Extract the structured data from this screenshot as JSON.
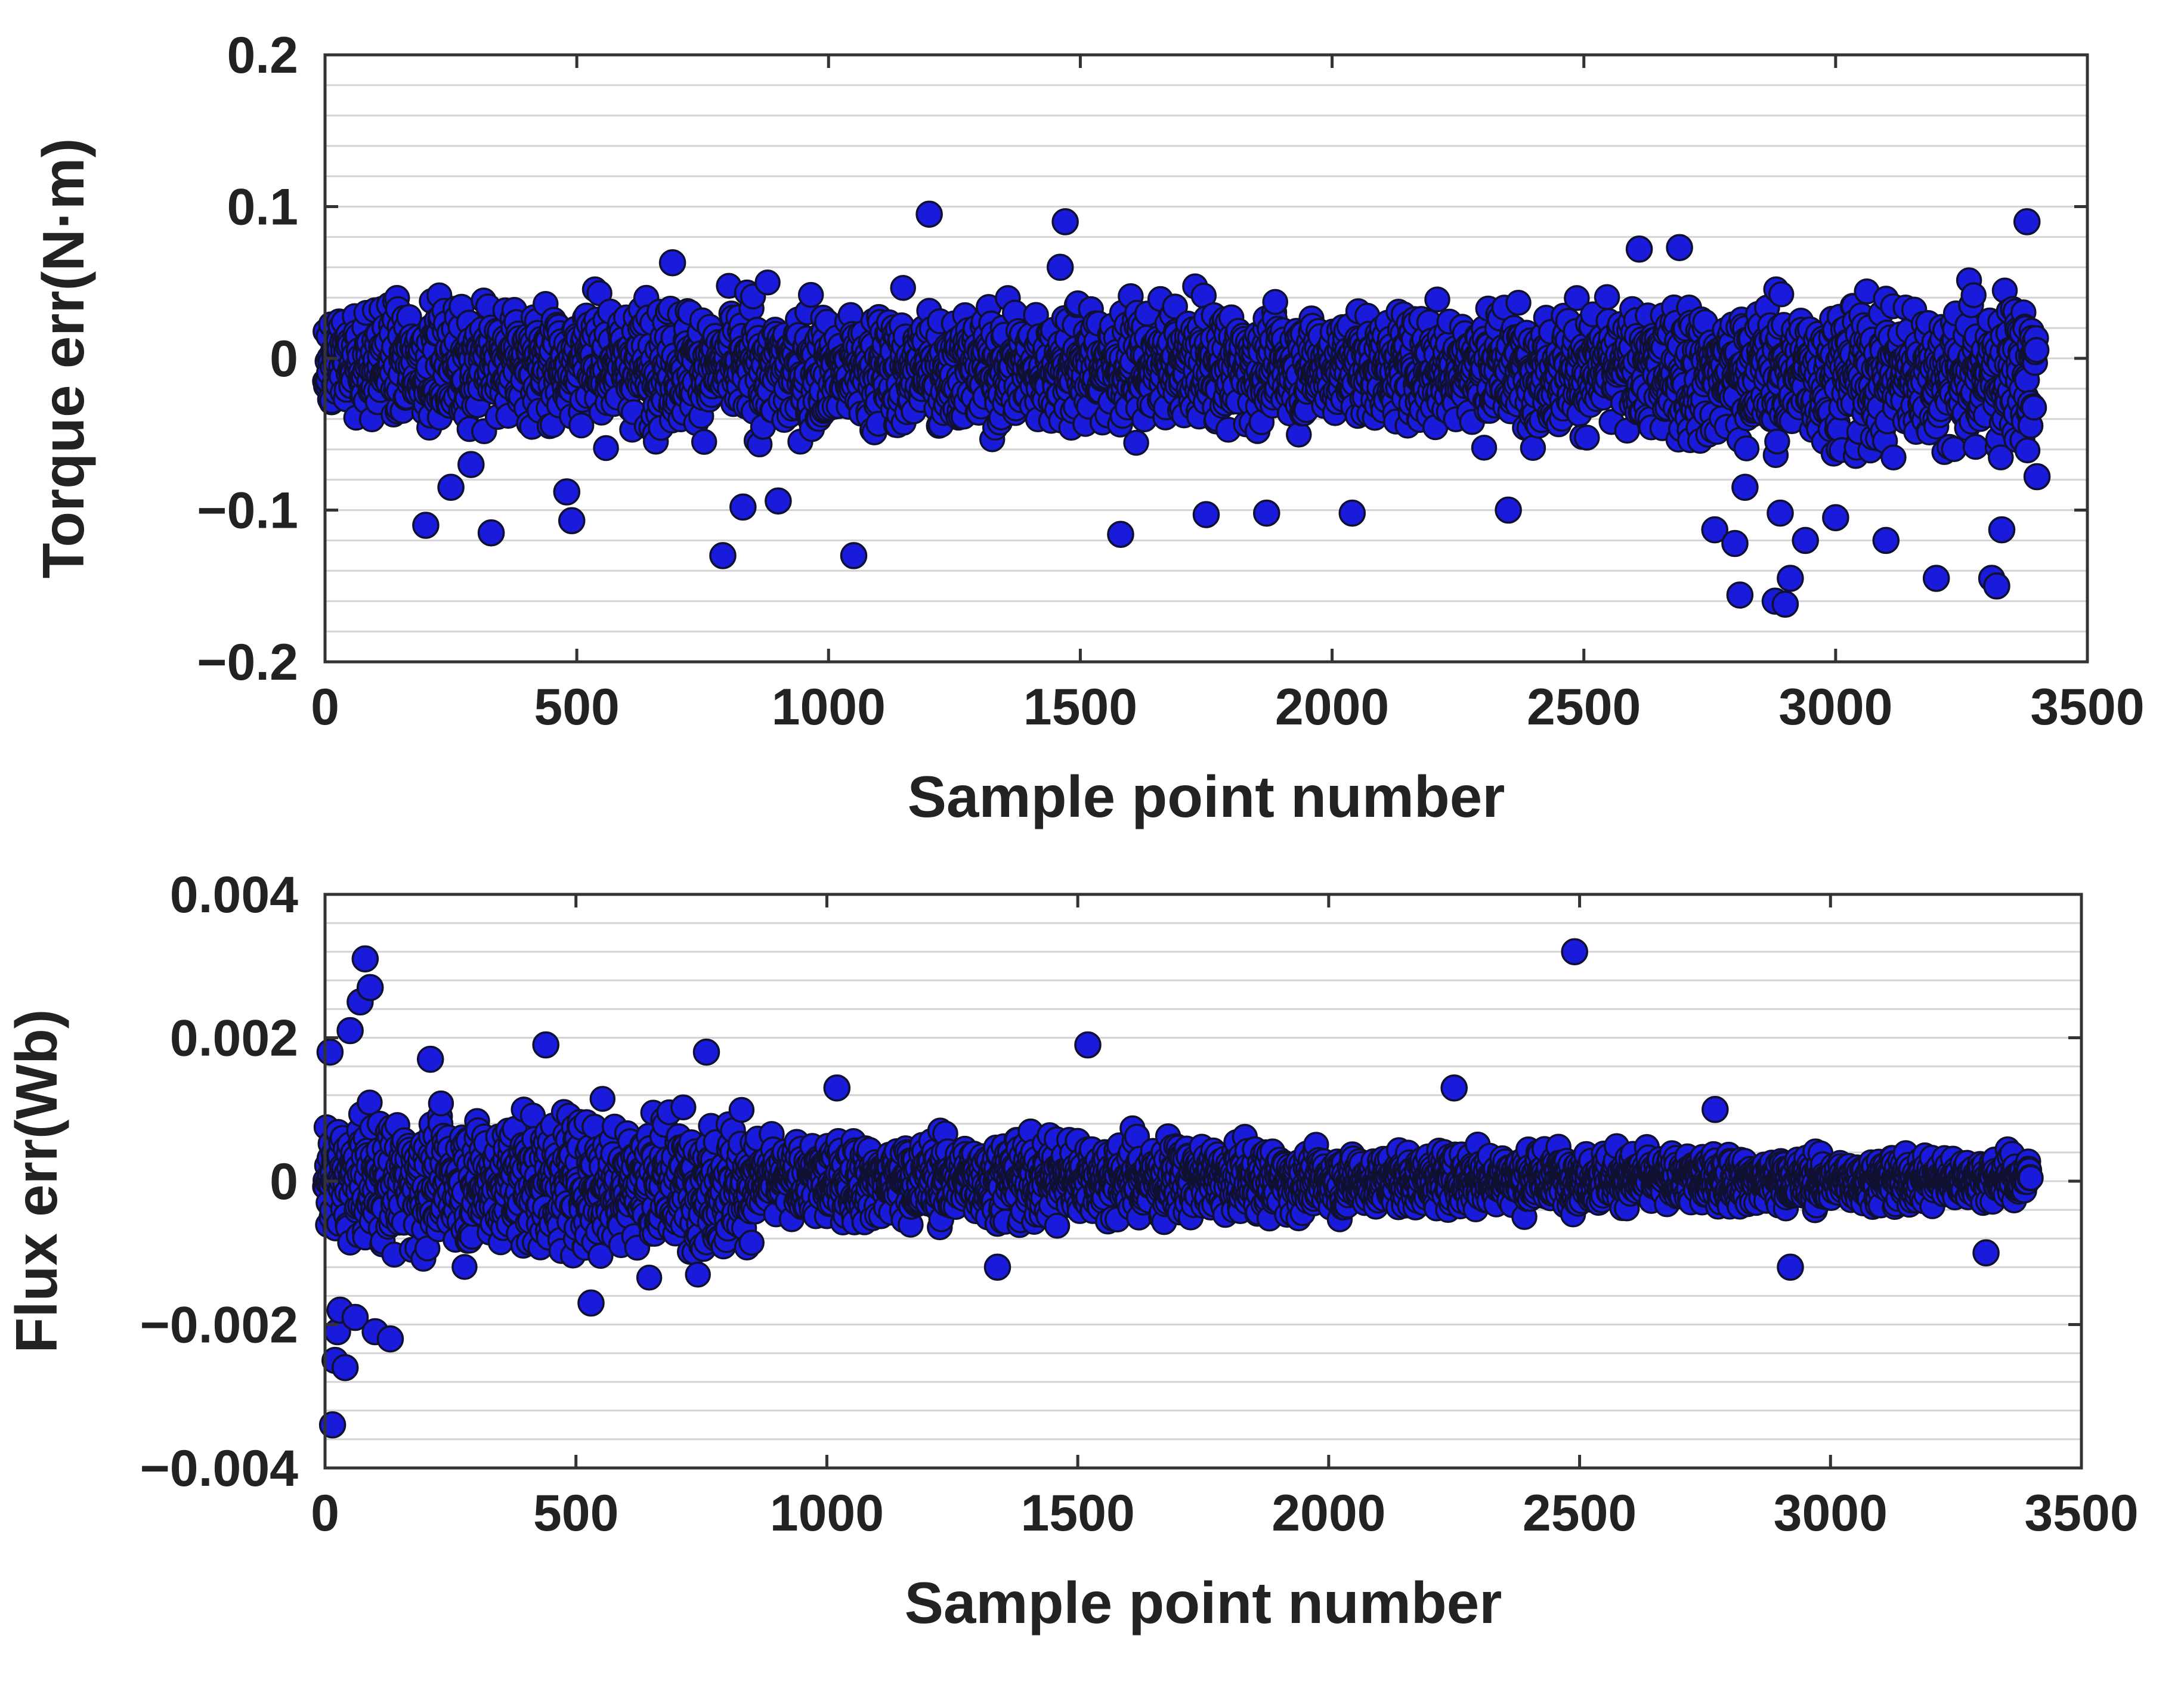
{
  "chart_data": [
    {
      "type": "scatter",
      "xlabel": "Sample point number",
      "ylabel": "Torque err(N·m)",
      "xlim": [
        0,
        3500
      ],
      "ylim": [
        -0.2,
        0.2
      ],
      "xticks": [
        0,
        500,
        1000,
        1500,
        2000,
        2500,
        3000,
        3500
      ],
      "yticks": [
        -0.2,
        -0.1,
        0,
        0.1,
        0.2
      ],
      "xtick_labels": [
        "0",
        "500",
        "1000",
        "1500",
        "2000",
        "2500",
        "3000",
        "3500"
      ],
      "ytick_labels": [
        "−0.2",
        "−0.1",
        "0",
        "0.1",
        "0.2"
      ],
      "grid": true,
      "marker_color": "#1a1adb",
      "sample_count": 3400,
      "bulk_band": [
        {
          "x": 0,
          "lo": -0.055,
          "hi": 0.05
        },
        {
          "x": 500,
          "lo": -0.06,
          "hi": 0.055
        },
        {
          "x": 1000,
          "lo": -0.065,
          "hi": 0.05
        },
        {
          "x": 1500,
          "lo": -0.06,
          "hi": 0.05
        },
        {
          "x": 2000,
          "lo": -0.055,
          "hi": 0.045
        },
        {
          "x": 2500,
          "lo": -0.065,
          "hi": 0.05
        },
        {
          "x": 3000,
          "lo": -0.08,
          "hi": 0.06
        },
        {
          "x": 3400,
          "lo": -0.08,
          "hi": 0.06
        }
      ],
      "series": [
        {
          "x": [
            200,
            250,
            290,
            330,
            480,
            490,
            690,
            790,
            830,
            900,
            1050,
            1200,
            1460,
            1470,
            1580,
            1750,
            1870,
            2040,
            2350,
            2610,
            2690,
            2760,
            2800,
            2810,
            2820,
            2880,
            2890,
            2900,
            2910,
            2940,
            3000,
            3100,
            3200,
            3310,
            3320,
            3330,
            3380,
            3400
          ],
          "y": [
            -0.11,
            -0.085,
            -0.07,
            -0.115,
            -0.088,
            -0.107,
            0.063,
            -0.13,
            -0.098,
            -0.094,
            -0.13,
            0.095,
            0.06,
            0.09,
            -0.116,
            -0.103,
            -0.102,
            -0.102,
            -0.1,
            0.072,
            0.073,
            -0.113,
            -0.122,
            -0.156,
            -0.085,
            -0.16,
            -0.102,
            -0.162,
            -0.145,
            -0.12,
            -0.105,
            -0.12,
            -0.145,
            -0.145,
            -0.15,
            -0.113,
            0.09,
            -0.078
          ]
        }
      ]
    },
    {
      "type": "scatter",
      "xlabel": "Sample point number",
      "ylabel": "Flux err(Wb)",
      "xlim": [
        0,
        3500
      ],
      "ylim": [
        -0.004,
        0.004
      ],
      "xticks": [
        0,
        500,
        1000,
        1500,
        2000,
        2500,
        3000,
        3500
      ],
      "yticks": [
        -0.004,
        -0.002,
        0,
        0.002,
        0.004
      ],
      "xtick_labels": [
        "0",
        "500",
        "1000",
        "1500",
        "2000",
        "2500",
        "3000",
        "3500"
      ],
      "ytick_labels": [
        "−0.004",
        "−0.002",
        "0",
        "0.002",
        "0.004"
      ],
      "grid": true,
      "marker_color": "#1a1adb",
      "sample_count": 3400,
      "bulk_band": [
        {
          "x": 0,
          "lo": -0.0012,
          "hi": 0.0012
        },
        {
          "x": 400,
          "lo": -0.0014,
          "hi": 0.0014
        },
        {
          "x": 820,
          "lo": -0.0014,
          "hi": 0.0013
        },
        {
          "x": 880,
          "lo": -0.0008,
          "hi": 0.0008
        },
        {
          "x": 1500,
          "lo": -0.0008,
          "hi": 0.0009
        },
        {
          "x": 2000,
          "lo": -0.0006,
          "hi": 0.0006
        },
        {
          "x": 2500,
          "lo": -0.0005,
          "hi": 0.0006
        },
        {
          "x": 3000,
          "lo": -0.0005,
          "hi": 0.0005
        },
        {
          "x": 3400,
          "lo": -0.0004,
          "hi": 0.0005
        }
      ],
      "series": [
        {
          "x": [
            10,
            15,
            20,
            25,
            30,
            40,
            50,
            60,
            70,
            80,
            90,
            100,
            130,
            210,
            440,
            530,
            760,
            1020,
            1340,
            1520,
            2250,
            2490,
            2770,
            2920,
            3310
          ],
          "y": [
            0.0018,
            -0.0034,
            -0.0025,
            -0.0021,
            -0.0018,
            -0.0026,
            0.0021,
            -0.0019,
            0.0025,
            0.0031,
            0.0027,
            -0.0021,
            -0.0022,
            0.0017,
            0.0019,
            -0.0017,
            0.0018,
            0.0013,
            -0.0012,
            0.0019,
            0.0013,
            0.0032,
            0.001,
            -0.0012,
            -0.001
          ]
        }
      ]
    }
  ]
}
